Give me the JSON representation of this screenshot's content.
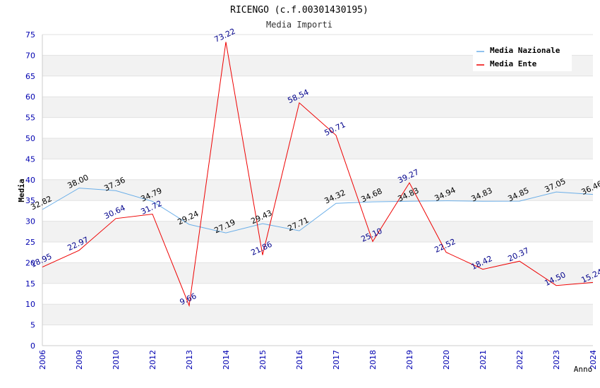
{
  "chart_data": {
    "type": "line",
    "title": "RICENGO (c.f.00301430195)",
    "subtitle": "Media Importi",
    "xlabel": "Anno",
    "ylabel": "Media",
    "ylim": [
      0,
      75
    ],
    "yticks": [
      0,
      5,
      10,
      15,
      20,
      25,
      30,
      35,
      40,
      45,
      50,
      55,
      60,
      65,
      70,
      75
    ],
    "grid": true,
    "legend_position": "top-right",
    "categories": [
      "2006",
      "2009",
      "2010",
      "2012",
      "2013",
      "2014",
      "2015",
      "2016",
      "2017",
      "2018",
      "2019",
      "2020",
      "2021",
      "2022",
      "2023",
      "2024"
    ],
    "series": [
      {
        "name": "Media Nazionale",
        "color": "#6aaee8",
        "label_color": "#000000",
        "values": [
          32.82,
          38.0,
          37.36,
          34.79,
          29.24,
          27.19,
          29.43,
          27.71,
          34.32,
          34.68,
          34.83,
          34.94,
          34.83,
          34.85,
          37.05,
          36.46
        ],
        "labels": [
          "32.82",
          "38.00",
          "37.36",
          "34.79",
          "29.24",
          "27.19",
          "29.43",
          "27.71",
          "34.32",
          "34.68",
          "34.83",
          "34.94",
          "34.83",
          "34.85",
          "37.05",
          "36.46"
        ]
      },
      {
        "name": "Media Ente",
        "color": "#ee0000",
        "label_color": "#00008b",
        "values": [
          18.95,
          22.97,
          30.64,
          31.72,
          9.66,
          73.22,
          21.86,
          58.54,
          50.71,
          25.1,
          39.27,
          22.52,
          18.42,
          20.37,
          14.5,
          15.24
        ],
        "labels": [
          "18.95",
          "22.97",
          "30.64",
          "31.72",
          "9.66",
          "73.22",
          "21.86",
          "58.54",
          "50.71",
          "25.10",
          "39.27",
          "22.52",
          "18.42",
          "20.37",
          "14.50",
          "15.24"
        ]
      }
    ]
  }
}
